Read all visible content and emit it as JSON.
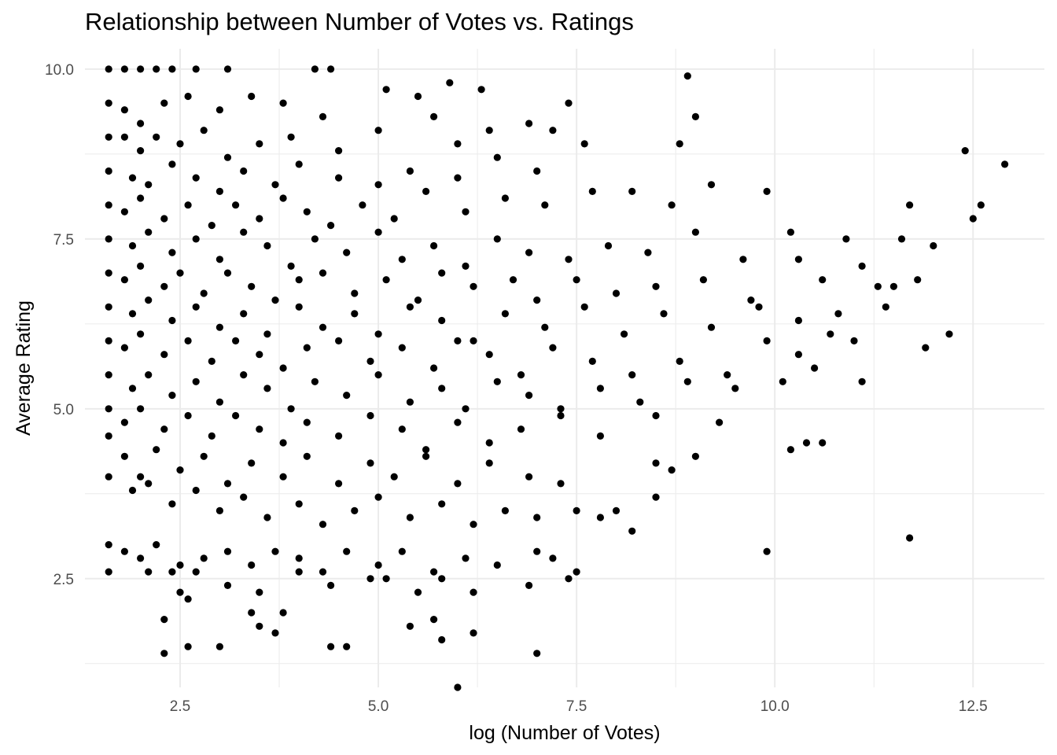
{
  "chart_data": {
    "type": "scatter",
    "title": "Relationship between Number of Votes vs. Ratings",
    "xlabel": "log (Number of Votes)",
    "ylabel": "Average Rating",
    "xlim": [
      1.3,
      13.4
    ],
    "ylim": [
      0.9,
      10.3
    ],
    "x_ticks": [
      2.5,
      5.0,
      7.5,
      10.0,
      12.5
    ],
    "x_tick_labels": [
      "2.5",
      "5.0",
      "7.5",
      "10.0",
      "12.5"
    ],
    "y_ticks": [
      2.5,
      5.0,
      7.5,
      10.0
    ],
    "y_tick_labels": [
      "2.5",
      "5.0",
      "7.5",
      "10.0"
    ],
    "grid": true,
    "point_color": "#000000",
    "grid_color": "#ebebeb",
    "points": [
      [
        1.6,
        10.0
      ],
      [
        1.8,
        10.0
      ],
      [
        2.0,
        10.0
      ],
      [
        2.2,
        10.0
      ],
      [
        2.4,
        10.0
      ],
      [
        2.7,
        10.0
      ],
      [
        3.1,
        10.0
      ],
      [
        4.2,
        10.0
      ],
      [
        4.4,
        10.0
      ],
      [
        1.6,
        9.5
      ],
      [
        1.8,
        9.4
      ],
      [
        2.0,
        9.2
      ],
      [
        2.3,
        9.5
      ],
      [
        2.6,
        9.6
      ],
      [
        3.0,
        9.4
      ],
      [
        3.4,
        9.6
      ],
      [
        3.8,
        9.5
      ],
      [
        4.3,
        9.3
      ],
      [
        5.1,
        9.7
      ],
      [
        5.5,
        9.6
      ],
      [
        5.9,
        9.8
      ],
      [
        6.3,
        9.7
      ],
      [
        7.4,
        9.5
      ],
      [
        8.9,
        9.9
      ],
      [
        1.6,
        9.0
      ],
      [
        1.8,
        9.0
      ],
      [
        2.0,
        8.8
      ],
      [
        2.2,
        9.0
      ],
      [
        2.5,
        8.9
      ],
      [
        2.8,
        9.1
      ],
      [
        3.1,
        8.7
      ],
      [
        3.5,
        8.9
      ],
      [
        3.9,
        9.0
      ],
      [
        4.5,
        8.8
      ],
      [
        5.0,
        9.1
      ],
      [
        5.7,
        9.3
      ],
      [
        6.0,
        8.9
      ],
      [
        6.4,
        9.1
      ],
      [
        6.9,
        9.2
      ],
      [
        7.2,
        9.1
      ],
      [
        9.0,
        9.3
      ],
      [
        1.6,
        8.5
      ],
      [
        1.9,
        8.4
      ],
      [
        2.1,
        8.3
      ],
      [
        2.4,
        8.6
      ],
      [
        2.7,
        8.4
      ],
      [
        3.0,
        8.2
      ],
      [
        3.3,
        8.5
      ],
      [
        3.7,
        8.3
      ],
      [
        4.0,
        8.6
      ],
      [
        4.5,
        8.4
      ],
      [
        5.0,
        8.3
      ],
      [
        5.4,
        8.5
      ],
      [
        6.0,
        8.4
      ],
      [
        6.5,
        8.7
      ],
      [
        7.0,
        8.5
      ],
      [
        7.6,
        8.9
      ],
      [
        8.8,
        8.9
      ],
      [
        1.6,
        8.0
      ],
      [
        1.8,
        7.9
      ],
      [
        2.0,
        8.1
      ],
      [
        2.3,
        7.8
      ],
      [
        2.6,
        8.0
      ],
      [
        2.9,
        7.7
      ],
      [
        3.2,
        8.0
      ],
      [
        3.5,
        7.8
      ],
      [
        3.8,
        8.1
      ],
      [
        4.1,
        7.9
      ],
      [
        4.4,
        7.7
      ],
      [
        4.8,
        8.0
      ],
      [
        5.2,
        7.8
      ],
      [
        5.6,
        8.2
      ],
      [
        6.1,
        7.9
      ],
      [
        6.6,
        8.1
      ],
      [
        7.1,
        8.0
      ],
      [
        7.7,
        8.2
      ],
      [
        8.2,
        8.2
      ],
      [
        8.7,
        8.0
      ],
      [
        9.2,
        8.3
      ],
      [
        9.9,
        8.2
      ],
      [
        11.7,
        8.0
      ],
      [
        12.4,
        8.8
      ],
      [
        12.6,
        8.0
      ],
      [
        12.9,
        8.6
      ],
      [
        1.6,
        7.5
      ],
      [
        1.9,
        7.4
      ],
      [
        2.1,
        7.6
      ],
      [
        2.4,
        7.3
      ],
      [
        2.7,
        7.5
      ],
      [
        3.0,
        7.2
      ],
      [
        3.3,
        7.6
      ],
      [
        3.6,
        7.4
      ],
      [
        3.9,
        7.1
      ],
      [
        4.2,
        7.5
      ],
      [
        4.6,
        7.3
      ],
      [
        5.0,
        7.6
      ],
      [
        5.3,
        7.2
      ],
      [
        5.7,
        7.4
      ],
      [
        6.1,
        7.1
      ],
      [
        6.5,
        7.5
      ],
      [
        6.9,
        7.3
      ],
      [
        7.4,
        7.2
      ],
      [
        7.9,
        7.4
      ],
      [
        8.4,
        7.3
      ],
      [
        9.0,
        7.6
      ],
      [
        9.6,
        7.2
      ],
      [
        10.2,
        7.6
      ],
      [
        10.9,
        7.5
      ],
      [
        11.6,
        7.5
      ],
      [
        12.0,
        7.4
      ],
      [
        12.5,
        7.8
      ],
      [
        1.6,
        7.0
      ],
      [
        1.8,
        6.9
      ],
      [
        2.0,
        7.1
      ],
      [
        2.3,
        6.8
      ],
      [
        2.5,
        7.0
      ],
      [
        2.8,
        6.7
      ],
      [
        3.1,
        7.0
      ],
      [
        3.4,
        6.8
      ],
      [
        3.7,
        6.6
      ],
      [
        4.0,
        6.9
      ],
      [
        4.3,
        7.0
      ],
      [
        4.7,
        6.7
      ],
      [
        5.1,
        6.9
      ],
      [
        5.5,
        6.6
      ],
      [
        5.8,
        7.0
      ],
      [
        6.2,
        6.8
      ],
      [
        6.7,
        6.9
      ],
      [
        7.0,
        6.6
      ],
      [
        7.5,
        6.9
      ],
      [
        8.0,
        6.7
      ],
      [
        8.5,
        6.8
      ],
      [
        9.1,
        6.9
      ],
      [
        9.7,
        6.6
      ],
      [
        10.3,
        7.2
      ],
      [
        10.6,
        6.9
      ],
      [
        11.1,
        7.1
      ],
      [
        11.5,
        6.8
      ],
      [
        11.8,
        6.9
      ],
      [
        12.2,
        6.1
      ],
      [
        1.6,
        6.5
      ],
      [
        1.9,
        6.4
      ],
      [
        2.1,
        6.6
      ],
      [
        2.4,
        6.3
      ],
      [
        2.7,
        6.5
      ],
      [
        3.0,
        6.2
      ],
      [
        3.3,
        6.4
      ],
      [
        3.6,
        6.1
      ],
      [
        4.0,
        6.5
      ],
      [
        4.3,
        6.2
      ],
      [
        4.7,
        6.4
      ],
      [
        5.0,
        6.1
      ],
      [
        5.4,
        6.5
      ],
      [
        5.8,
        6.3
      ],
      [
        6.2,
        6.0
      ],
      [
        6.6,
        6.4
      ],
      [
        7.1,
        6.2
      ],
      [
        7.6,
        6.5
      ],
      [
        8.1,
        6.1
      ],
      [
        8.6,
        6.4
      ],
      [
        9.2,
        6.2
      ],
      [
        9.8,
        6.5
      ],
      [
        10.3,
        6.3
      ],
      [
        10.8,
        6.4
      ],
      [
        11.0,
        6.0
      ],
      [
        11.4,
        6.5
      ],
      [
        11.9,
        5.9
      ],
      [
        1.6,
        6.0
      ],
      [
        1.8,
        5.9
      ],
      [
        2.0,
        6.1
      ],
      [
        2.3,
        5.8
      ],
      [
        2.6,
        6.0
      ],
      [
        2.9,
        5.7
      ],
      [
        3.2,
        6.0
      ],
      [
        3.5,
        5.8
      ],
      [
        3.8,
        5.6
      ],
      [
        4.1,
        5.9
      ],
      [
        4.5,
        6.0
      ],
      [
        4.9,
        5.7
      ],
      [
        5.3,
        5.9
      ],
      [
        5.7,
        5.6
      ],
      [
        6.0,
        6.0
      ],
      [
        6.4,
        5.8
      ],
      [
        6.8,
        5.5
      ],
      [
        7.2,
        5.9
      ],
      [
        7.7,
        5.7
      ],
      [
        8.2,
        5.5
      ],
      [
        8.8,
        5.7
      ],
      [
        9.4,
        5.5
      ],
      [
        9.9,
        6.0
      ],
      [
        10.5,
        5.6
      ],
      [
        10.7,
        6.1
      ],
      [
        11.1,
        5.4
      ],
      [
        11.3,
        6.8
      ],
      [
        1.6,
        5.5
      ],
      [
        1.9,
        5.3
      ],
      [
        2.1,
        5.5
      ],
      [
        2.4,
        5.2
      ],
      [
        2.7,
        5.4
      ],
      [
        3.0,
        5.1
      ],
      [
        3.3,
        5.5
      ],
      [
        3.6,
        5.3
      ],
      [
        3.9,
        5.0
      ],
      [
        4.2,
        5.4
      ],
      [
        4.6,
        5.2
      ],
      [
        5.0,
        5.5
      ],
      [
        5.4,
        5.1
      ],
      [
        5.8,
        5.3
      ],
      [
        6.1,
        5.0
      ],
      [
        6.5,
        5.4
      ],
      [
        6.9,
        5.2
      ],
      [
        7.3,
        5.0
      ],
      [
        7.8,
        5.3
      ],
      [
        8.3,
        5.1
      ],
      [
        8.9,
        5.4
      ],
      [
        9.5,
        5.3
      ],
      [
        10.1,
        5.4
      ],
      [
        10.3,
        5.8
      ],
      [
        1.6,
        5.0
      ],
      [
        1.8,
        4.8
      ],
      [
        2.0,
        5.0
      ],
      [
        2.3,
        4.7
      ],
      [
        2.6,
        4.9
      ],
      [
        2.9,
        4.6
      ],
      [
        3.2,
        4.9
      ],
      [
        3.5,
        4.7
      ],
      [
        3.8,
        4.5
      ],
      [
        4.1,
        4.8
      ],
      [
        4.5,
        4.6
      ],
      [
        4.9,
        4.9
      ],
      [
        5.3,
        4.7
      ],
      [
        5.6,
        4.4
      ],
      [
        6.0,
        4.8
      ],
      [
        6.4,
        4.5
      ],
      [
        6.8,
        4.7
      ],
      [
        7.3,
        4.9
      ],
      [
        7.8,
        4.6
      ],
      [
        8.5,
        4.9
      ],
      [
        9.3,
        4.8
      ],
      [
        1.6,
        4.6
      ],
      [
        1.8,
        4.3
      ],
      [
        2.0,
        4.0
      ],
      [
        2.2,
        4.4
      ],
      [
        2.5,
        4.1
      ],
      [
        2.8,
        4.3
      ],
      [
        3.1,
        3.9
      ],
      [
        3.4,
        4.2
      ],
      [
        3.8,
        4.0
      ],
      [
        4.1,
        4.3
      ],
      [
        4.5,
        3.9
      ],
      [
        4.9,
        4.2
      ],
      [
        5.2,
        4.0
      ],
      [
        5.6,
        4.3
      ],
      [
        6.0,
        3.9
      ],
      [
        6.4,
        4.2
      ],
      [
        6.9,
        4.0
      ],
      [
        7.3,
        3.9
      ],
      [
        8.5,
        4.2
      ],
      [
        8.7,
        4.1
      ],
      [
        9.0,
        4.3
      ],
      [
        10.2,
        4.4
      ],
      [
        10.4,
        4.5
      ],
      [
        10.6,
        4.5
      ],
      [
        1.6,
        4.0
      ],
      [
        1.9,
        3.8
      ],
      [
        2.1,
        3.9
      ],
      [
        2.4,
        3.6
      ],
      [
        2.7,
        3.8
      ],
      [
        3.0,
        3.5
      ],
      [
        3.3,
        3.7
      ],
      [
        3.6,
        3.4
      ],
      [
        4.0,
        3.6
      ],
      [
        4.3,
        3.3
      ],
      [
        4.7,
        3.5
      ],
      [
        5.0,
        3.7
      ],
      [
        5.4,
        3.4
      ],
      [
        5.8,
        3.6
      ],
      [
        6.2,
        3.3
      ],
      [
        6.6,
        3.5
      ],
      [
        7.0,
        3.4
      ],
      [
        7.5,
        3.5
      ],
      [
        7.8,
        3.4
      ],
      [
        8.0,
        3.5
      ],
      [
        8.5,
        3.7
      ],
      [
        1.6,
        3.0
      ],
      [
        1.8,
        2.9
      ],
      [
        2.0,
        2.8
      ],
      [
        2.2,
        3.0
      ],
      [
        2.5,
        2.7
      ],
      [
        2.8,
        2.8
      ],
      [
        3.1,
        2.9
      ],
      [
        3.4,
        2.7
      ],
      [
        3.7,
        2.9
      ],
      [
        4.0,
        2.8
      ],
      [
        4.3,
        2.6
      ],
      [
        4.6,
        2.9
      ],
      [
        5.0,
        2.7
      ],
      [
        5.3,
        2.9
      ],
      [
        5.7,
        2.6
      ],
      [
        6.1,
        2.8
      ],
      [
        6.5,
        2.7
      ],
      [
        7.0,
        2.9
      ],
      [
        7.2,
        2.8
      ],
      [
        8.2,
        3.2
      ],
      [
        9.9,
        2.9
      ],
      [
        11.7,
        3.1
      ],
      [
        1.6,
        2.6
      ],
      [
        2.1,
        2.6
      ],
      [
        2.4,
        2.6
      ],
      [
        2.7,
        2.6
      ],
      [
        3.1,
        2.4
      ],
      [
        3.5,
        2.3
      ],
      [
        4.0,
        2.6
      ],
      [
        4.4,
        2.4
      ],
      [
        4.9,
        2.5
      ],
      [
        5.1,
        2.5
      ],
      [
        5.5,
        2.3
      ],
      [
        5.8,
        2.5
      ],
      [
        6.2,
        2.3
      ],
      [
        6.9,
        2.4
      ],
      [
        7.4,
        2.5
      ],
      [
        7.5,
        2.6
      ],
      [
        2.3,
        1.9
      ],
      [
        2.5,
        2.3
      ],
      [
        2.6,
        2.2
      ],
      [
        3.4,
        2.0
      ],
      [
        3.5,
        1.8
      ],
      [
        3.8,
        2.0
      ],
      [
        3.7,
        1.7
      ],
      [
        5.4,
        1.8
      ],
      [
        5.7,
        1.9
      ],
      [
        5.8,
        1.6
      ],
      [
        6.2,
        1.7
      ],
      [
        2.3,
        1.4
      ],
      [
        2.6,
        1.5
      ],
      [
        3.0,
        1.5
      ],
      [
        4.4,
        1.5
      ],
      [
        4.6,
        1.5
      ],
      [
        7.0,
        1.4
      ],
      [
        6.0,
        0.9
      ]
    ]
  }
}
